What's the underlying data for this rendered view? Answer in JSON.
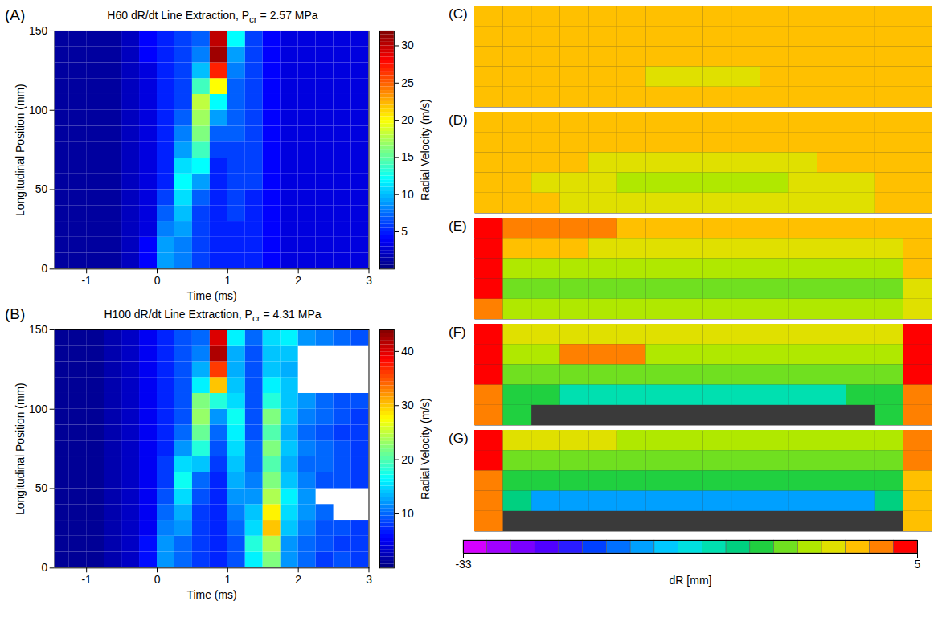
{
  "chart_data": [
    {
      "type": "heatmap",
      "panel": "(A)",
      "title": "H60 dR/dt Line Extraction, Pcr = 2.57 MPa",
      "title_subscript": "cr",
      "x_label": "Time (ms)",
      "y_label": "Longitudinal Position (mm)",
      "xlim": [
        -1.45,
        3
      ],
      "xticks": [
        -1,
        0,
        1,
        2,
        3
      ],
      "ylim": [
        0,
        150
      ],
      "yticks": [
        0,
        50,
        100,
        150
      ],
      "x_bins": [
        -1.5,
        -1.25,
        -1,
        -0.75,
        -0.5,
        -0.25,
        0,
        0.25,
        0.5,
        0.75,
        1,
        1.25,
        1.5,
        1.75,
        2,
        2.25,
        2.5,
        2.75,
        3
      ],
      "y_bins": [
        0,
        10,
        20,
        30,
        40,
        50,
        60,
        70,
        80,
        90,
        100,
        110,
        120,
        130,
        140,
        150
      ],
      "values": [
        [
          1,
          1,
          1,
          1,
          2,
          4,
          9,
          8,
          6,
          5,
          5,
          5,
          4,
          3,
          3,
          3,
          3,
          3
        ],
        [
          1,
          1,
          1,
          1,
          2,
          4,
          9,
          8,
          6,
          5,
          5,
          5,
          4,
          3,
          3,
          3,
          3,
          3
        ],
        [
          1,
          1,
          1,
          1,
          2,
          3,
          8,
          9,
          6,
          5,
          5,
          5,
          4,
          3,
          3,
          3,
          3,
          3
        ],
        [
          1,
          1,
          1,
          1,
          2,
          3,
          7,
          10,
          6,
          5,
          6,
          5,
          4,
          3,
          3,
          3,
          3,
          3
        ],
        [
          1,
          1,
          1,
          1,
          2,
          3,
          6,
          11,
          7,
          5,
          6,
          5,
          4,
          3,
          3,
          3,
          3,
          3
        ],
        [
          1,
          1,
          1,
          1,
          2,
          3,
          5,
          12,
          9,
          5,
          6,
          6,
          4,
          3,
          3,
          3,
          3,
          3
        ],
        [
          1,
          1,
          1,
          1,
          2,
          3,
          5,
          11,
          12,
          5,
          6,
          6,
          4,
          3,
          3,
          3,
          3,
          3
        ],
        [
          1,
          1,
          1,
          1,
          2,
          3,
          5,
          9,
          14,
          6,
          6,
          6,
          4,
          3,
          3,
          3,
          3,
          3
        ],
        [
          1,
          1,
          1,
          1,
          2,
          3,
          5,
          8,
          16,
          7,
          7,
          6,
          4,
          3,
          3,
          3,
          3,
          3
        ],
        [
          1,
          1,
          1,
          1,
          2,
          3,
          5,
          7,
          17,
          9,
          7,
          6,
          4,
          3,
          3,
          3,
          3,
          3
        ],
        [
          1,
          1,
          1,
          1,
          2,
          3,
          5,
          6,
          18,
          12,
          7,
          6,
          4,
          3,
          3,
          3,
          3,
          3
        ],
        [
          1,
          1,
          1,
          1,
          2,
          3,
          5,
          6,
          14,
          20,
          7,
          6,
          4,
          3,
          3,
          3,
          3,
          3
        ],
        [
          1,
          1,
          1,
          1,
          2,
          3,
          5,
          6,
          10,
          27,
          8,
          6,
          4,
          3,
          3,
          3,
          3,
          3
        ],
        [
          1,
          1,
          1,
          1,
          2,
          4,
          5,
          6,
          8,
          31,
          9,
          6,
          4,
          3,
          3,
          3,
          3,
          3
        ],
        [
          1,
          1,
          1,
          1,
          2,
          4,
          5,
          6,
          7,
          30,
          12,
          6,
          4,
          3,
          3,
          3,
          3,
          3
        ]
      ],
      "colorbar": {
        "label": "Radial Velocity (m/s)",
        "range": [
          0,
          32
        ],
        "ticks": [
          5,
          10,
          15,
          20,
          25,
          30
        ]
      }
    },
    {
      "type": "heatmap",
      "panel": "(B)",
      "title": "H100 dR/dt Line Extraction, Pcr = 4.31 MPa",
      "title_subscript": "cr",
      "x_label": "Time (ms)",
      "y_label": "Longitudinal Position (mm)",
      "xlim": [
        -1.45,
        3
      ],
      "xticks": [
        -1,
        0,
        1,
        2,
        3
      ],
      "ylim": [
        0,
        150
      ],
      "yticks": [
        0,
        50,
        100,
        150
      ],
      "x_bins": [
        -1.5,
        -1.25,
        -1,
        -0.75,
        -0.5,
        -0.25,
        0,
        0.25,
        0.5,
        0.75,
        1,
        1.25,
        1.5,
        1.75,
        2,
        2.25,
        2.5,
        2.75,
        3
      ],
      "y_bins": [
        0,
        10,
        20,
        30,
        40,
        50,
        60,
        70,
        80,
        90,
        100,
        110,
        120,
        130,
        140,
        150
      ],
      "values": [
        [
          1,
          1,
          1,
          2,
          3,
          6,
          12,
          10,
          8,
          7,
          9,
          16,
          22,
          12,
          10,
          8,
          9,
          8
        ],
        [
          1,
          1,
          1,
          2,
          3,
          6,
          12,
          10,
          8,
          7,
          9,
          18,
          24,
          12,
          10,
          9,
          8,
          8
        ],
        [
          1,
          1,
          1,
          2,
          3,
          5,
          11,
          12,
          8,
          7,
          10,
          15,
          30,
          14,
          11,
          9,
          9,
          8
        ],
        [
          1,
          1,
          1,
          2,
          3,
          5,
          10,
          13,
          8,
          7,
          11,
          14,
          28,
          15,
          12,
          10,
          null,
          null
        ],
        [
          1,
          1,
          1,
          2,
          3,
          5,
          9,
          15,
          9,
          7,
          12,
          12,
          24,
          16,
          12,
          null,
          null,
          null
        ],
        [
          1,
          1,
          1,
          2,
          3,
          5,
          8,
          17,
          10,
          7,
          13,
          11,
          22,
          14,
          11,
          9,
          9,
          8
        ],
        [
          1,
          1,
          1,
          2,
          3,
          5,
          8,
          15,
          14,
          8,
          14,
          10,
          20,
          13,
          10,
          10,
          9,
          8
        ],
        [
          1,
          1,
          1,
          2,
          3,
          5,
          7,
          12,
          18,
          9,
          15,
          10,
          22,
          14,
          11,
          10,
          9,
          8
        ],
        [
          1,
          1,
          1,
          2,
          3,
          5,
          7,
          10,
          21,
          10,
          16,
          9,
          20,
          13,
          10,
          9,
          8,
          8
        ],
        [
          1,
          1,
          1,
          2,
          3,
          5,
          7,
          9,
          23,
          12,
          17,
          9,
          22,
          14,
          11,
          10,
          9,
          8
        ],
        [
          1,
          1,
          1,
          2,
          3,
          5,
          7,
          9,
          22,
          18,
          15,
          9,
          18,
          14,
          12,
          10,
          9,
          9
        ],
        [
          1,
          1,
          1,
          2,
          3,
          5,
          7,
          9,
          16,
          30,
          14,
          9,
          16,
          14,
          null,
          null,
          null,
          null
        ],
        [
          1,
          1,
          1,
          2,
          3,
          5,
          7,
          9,
          13,
          36,
          13,
          9,
          14,
          13,
          null,
          null,
          null,
          null
        ],
        [
          1,
          1,
          1,
          2,
          3,
          5,
          7,
          9,
          11,
          42,
          13,
          9,
          14,
          14,
          null,
          null,
          null,
          null
        ],
        [
          1,
          1,
          1,
          2,
          3,
          5,
          7,
          9,
          10,
          40,
          16,
          10,
          15,
          16,
          12,
          11,
          10,
          9
        ]
      ],
      "colorbar": {
        "label": "Radial Velocity (m/s)",
        "range": [
          0,
          44
        ],
        "ticks": [
          10,
          20,
          30,
          40
        ]
      }
    },
    {
      "type": "image_panels",
      "tick_labels": false,
      "panels": [
        {
          "panel": "(C)",
          "values": [
            [
              0,
              0,
              0,
              0,
              0,
              0,
              0,
              0,
              0,
              0,
              0,
              0,
              0,
              0,
              0,
              0
            ],
            [
              0,
              0,
              0,
              0,
              0,
              0,
              0,
              0,
              0,
              0,
              0,
              0,
              0,
              0,
              0,
              0
            ],
            [
              0,
              0,
              0,
              0,
              0,
              0,
              0,
              0,
              0,
              0,
              0,
              0,
              0,
              0,
              0,
              0
            ],
            [
              0,
              0,
              0,
              0,
              0,
              0,
              -2,
              -2,
              -2,
              -2,
              0,
              0,
              0,
              0,
              0,
              0
            ],
            [
              0,
              0,
              0,
              0,
              0,
              0,
              0,
              0,
              0,
              0,
              0,
              0,
              0,
              0,
              0,
              0
            ]
          ]
        },
        {
          "panel": "(D)",
          "values": [
            [
              0,
              0,
              0,
              0,
              0,
              0,
              0,
              0,
              0,
              0,
              0,
              0,
              0,
              0,
              0,
              0
            ],
            [
              0,
              0,
              0,
              0,
              0,
              0,
              0,
              0,
              0,
              0,
              0,
              0,
              0,
              0,
              0,
              0
            ],
            [
              0,
              0,
              0,
              0,
              -2,
              -2,
              -2,
              -2,
              -2,
              -2,
              -2,
              -2,
              0,
              0,
              0,
              0
            ],
            [
              0,
              0,
              -3,
              -3,
              -3,
              -4,
              -4,
              -4,
              -4,
              -4,
              -4,
              -3,
              -3,
              -3,
              0,
              0
            ],
            [
              0,
              0,
              0,
              -2,
              -2,
              -2,
              -2,
              -2,
              -2,
              -2,
              -2,
              -2,
              -2,
              -2,
              0,
              0
            ]
          ]
        },
        {
          "panel": "(E)",
          "values": [
            [
              3,
              2,
              2,
              2,
              2,
              0,
              0,
              0,
              0,
              0,
              0,
              0,
              0,
              0,
              0,
              0
            ],
            [
              3,
              -1,
              -1,
              -1,
              -2,
              -2,
              -2,
              -2,
              -2,
              -2,
              -2,
              -2,
              -2,
              -2,
              -2,
              0
            ],
            [
              3,
              -4,
              -4,
              -4,
              -4,
              -4,
              -4,
              -4,
              -4,
              -4,
              -4,
              -4,
              -4,
              -4,
              -4,
              -1
            ],
            [
              3,
              -7,
              -7,
              -7,
              -7,
              -7,
              -7,
              -7,
              -7,
              -7,
              -7,
              -7,
              -7,
              -7,
              -7,
              -3
            ],
            [
              2,
              -5,
              -5,
              -5,
              -5,
              -5,
              -5,
              -5,
              -5,
              -5,
              -5,
              -5,
              -5,
              -5,
              -5,
              -2
            ]
          ]
        },
        {
          "panel": "(F)",
          "values": [
            [
              3,
              -3,
              -3,
              -3,
              -3,
              -3,
              -3,
              -3,
              -3,
              -3,
              -3,
              -3,
              -3,
              -3,
              -3,
              3
            ],
            [
              3,
              -4,
              -4,
              2,
              2,
              2,
              -4,
              -4,
              -4,
              -4,
              -4,
              -4,
              -4,
              -4,
              -4,
              3
            ],
            [
              3,
              -7,
              -7,
              -7,
              -7,
              -7,
              -7,
              -7,
              -7,
              -7,
              -7,
              -7,
              -7,
              -7,
              -7,
              3
            ],
            [
              2,
              -9,
              -9,
              -13,
              -13,
              -13,
              -13,
              -13,
              -13,
              -13,
              -13,
              -13,
              -13,
              -9,
              -9,
              2
            ],
            [
              1,
              -8,
              null,
              null,
              null,
              null,
              null,
              null,
              null,
              null,
              null,
              null,
              null,
              null,
              -8,
              1
            ]
          ]
        },
        {
          "panel": "(G)",
          "values": [
            [
              3,
              -3,
              -3,
              -3,
              -3,
              -5,
              -5,
              -5,
              -5,
              -5,
              -5,
              -5,
              -5,
              -5,
              -5,
              1
            ],
            [
              3,
              -6,
              -6,
              -6,
              -6,
              -6,
              -6,
              -6,
              -6,
              -6,
              -6,
              -6,
              -6,
              -6,
              -6,
              1
            ],
            [
              2,
              -8,
              -8,
              -8,
              -8,
              -8,
              -8,
              -8,
              -8,
              -8,
              -8,
              -8,
              -8,
              -8,
              -8,
              0
            ],
            [
              1,
              -10,
              -19,
              -19,
              -19,
              -19,
              -19,
              -19,
              -19,
              -19,
              -19,
              -19,
              -19,
              -19,
              -10,
              0
            ],
            [
              2,
              null,
              null,
              null,
              null,
              null,
              null,
              null,
              null,
              null,
              null,
              null,
              null,
              null,
              null,
              -1
            ]
          ]
        }
      ],
      "colorbar": {
        "label": "dR [mm]",
        "range": [
          -33,
          5
        ],
        "ticks": [
          -33,
          5
        ]
      }
    }
  ]
}
